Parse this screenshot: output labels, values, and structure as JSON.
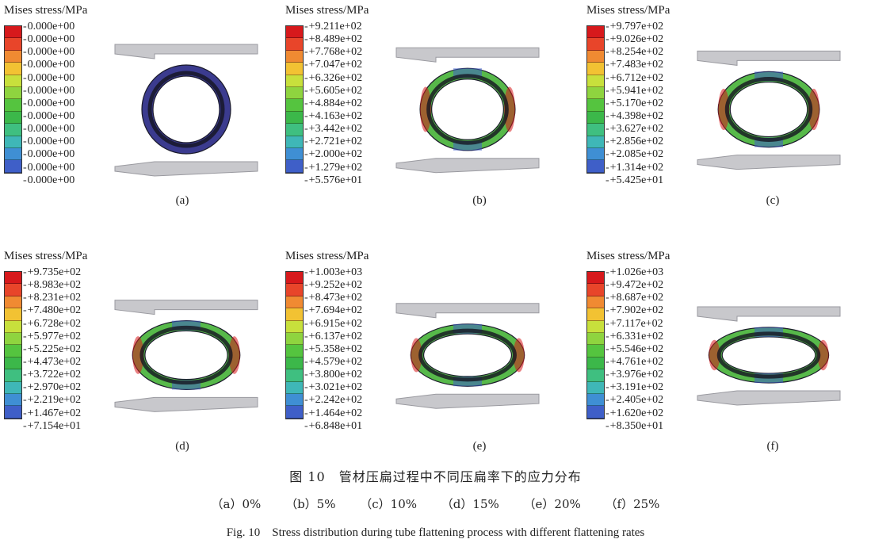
{
  "panels": [
    {
      "id": "a",
      "label": "(a)",
      "legend_title": "Mises stress/MPa",
      "flatten": 0.0,
      "values": [
        "0.000e+00",
        "0.000e+00",
        "0.000e+00",
        "0.000e+00",
        "0.000e+00",
        "0.000e+00",
        "0.000e+00",
        "0.000e+00",
        "0.000e+00",
        "0.000e+00",
        "0.000e+00",
        "0.000e+00",
        "0.000e+00"
      ]
    },
    {
      "id": "b",
      "label": "(b)",
      "legend_title": "Mises stress/MPa",
      "flatten": 0.05,
      "values": [
        "+9.211e+02",
        "+8.489e+02",
        "+7.768e+02",
        "+7.047e+02",
        "+6.326e+02",
        "+5.605e+02",
        "+4.884e+02",
        "+4.163e+02",
        "+3.442e+02",
        "+2.721e+02",
        "+2.000e+02",
        "+1.279e+02",
        "+5.576e+01"
      ]
    },
    {
      "id": "c",
      "label": "(c)",
      "legend_title": "Mises stress/MPa",
      "flatten": 0.1,
      "values": [
        "+9.797e+02",
        "+9.026e+02",
        "+8.254e+02",
        "+7.483e+02",
        "+6.712e+02",
        "+5.941e+02",
        "+5.170e+02",
        "+4.398e+02",
        "+3.627e+02",
        "+2.856e+02",
        "+2.085e+02",
        "+1.314e+02",
        "+5.425e+01"
      ]
    },
    {
      "id": "d",
      "label": "(d)",
      "legend_title": "Mises stress/MPa",
      "flatten": 0.15,
      "values": [
        "+9.735e+02",
        "+8.983e+02",
        "+8.231e+02",
        "+7.480e+02",
        "+6.728e+02",
        "+5.977e+02",
        "+5.225e+02",
        "+4.473e+02",
        "+3.722e+02",
        "+2.970e+02",
        "+2.219e+02",
        "+1.467e+02",
        "+7.154e+01"
      ]
    },
    {
      "id": "e",
      "label": "(e)",
      "legend_title": "Mises stress/MPa",
      "flatten": 0.2,
      "values": [
        "+1.003e+03",
        "+9.252e+02",
        "+8.473e+02",
        "+7.694e+02",
        "+6.915e+02",
        "+6.137e+02",
        "+5.358e+02",
        "+4.579e+02",
        "+3.800e+02",
        "+3.021e+02",
        "+2.242e+02",
        "+1.464e+02",
        "+6.848e+01"
      ]
    },
    {
      "id": "f",
      "label": "(f)",
      "legend_title": "Mises stress/MPa",
      "flatten": 0.25,
      "values": [
        "+1.026e+03",
        "+9.472e+02",
        "+8.687e+02",
        "+7.902e+02",
        "+7.117e+02",
        "+6.331e+02",
        "+5.546e+02",
        "+4.761e+02",
        "+3.976e+02",
        "+3.191e+02",
        "+2.405e+02",
        "+1.620e+02",
        "+8.350e+01"
      ]
    }
  ],
  "colormap": [
    "#d7191c",
    "#e8452a",
    "#f08a32",
    "#f2c233",
    "#c8e03c",
    "#8fd43f",
    "#55c43f",
    "#3cb84a",
    "#3fbf80",
    "#3fb7b7",
    "#3f8fd4",
    "#3f5fc8",
    "#3f3f9f"
  ],
  "caption": {
    "zh": "图 10　管材压扁过程中不同压扁率下的应力分布",
    "sub": [
      "（a）0%",
      "（b）5%",
      "（c）10%",
      "（d）15%",
      "（e）20%",
      "（f）25%"
    ],
    "en": "Fig. 10　Stress distribution during tube flattening process with different flattening rates"
  }
}
